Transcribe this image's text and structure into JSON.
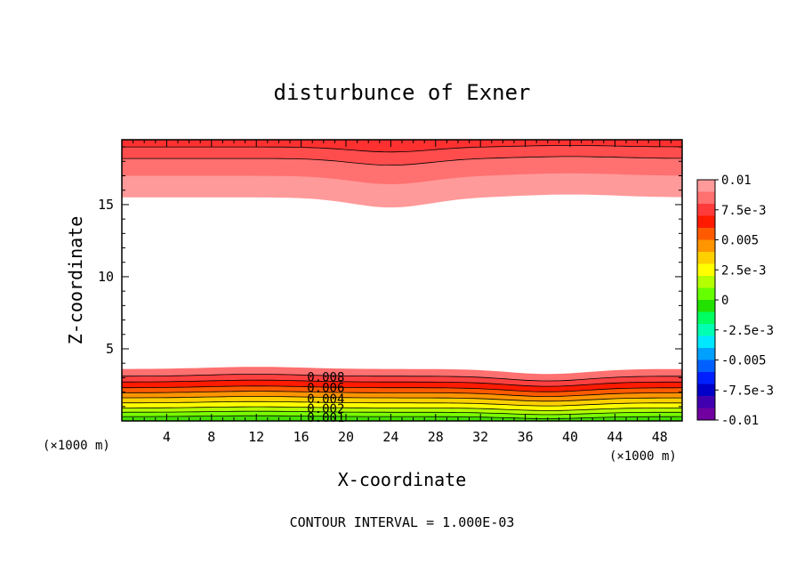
{
  "chart_data": {
    "type": "contour",
    "title": "disturbunce of Exner",
    "xlabel": "X-coordinate",
    "ylabel": "Z-coordinate",
    "x_unit_label": "(×1000 m)",
    "y_unit_label": "(×1000 m)",
    "xlim": [
      0,
      50
    ],
    "ylim": [
      0,
      19.5
    ],
    "x_ticks": [
      4,
      8,
      12,
      16,
      20,
      24,
      28,
      32,
      36,
      40,
      44,
      48
    ],
    "y_ticks": [
      5,
      10,
      15
    ],
    "contour_interval_text": "CONTOUR INTERVAL = 1.000E-03",
    "contour_labels": [
      "0.008",
      "0.006",
      "0.004",
      "0.002",
      "0.001"
    ],
    "colorbar": {
      "labels": [
        "0.01",
        "7.5e-3",
        "0.005",
        "2.5e-3",
        "0",
        "-2.5e-3",
        "-0.005",
        "-7.5e-3",
        "-0.01"
      ],
      "colors": [
        "#ff9a9a",
        "#ff7070",
        "#ff3a3a",
        "#ff1a00",
        "#ff5a00",
        "#ff9500",
        "#ffd000",
        "#ffff00",
        "#b4ff00",
        "#66ff00",
        "#22e000",
        "#00ff60",
        "#00ffb0",
        "#00e8ff",
        "#00a0ff",
        "#0060ff",
        "#0020ff",
        "#0000c8",
        "#4000b0",
        "#7000a0"
      ]
    },
    "bottom_layer_levels": [
      0.001,
      0.002,
      0.003,
      0.004,
      0.005,
      0.006,
      0.007,
      0.008,
      0.009,
      0.01
    ],
    "bottom_layer_colors": [
      "#44e000",
      "#7aff00",
      "#b4ff00",
      "#ffff00",
      "#ffd000",
      "#ff9500",
      "#ff5a00",
      "#ff1a00",
      "#ff4040",
      "#ff7070"
    ],
    "bottom_layer_tops_km": [
      0.3,
      0.6,
      0.9,
      1.25,
      1.6,
      1.95,
      2.3,
      2.7,
      3.1,
      3.6
    ],
    "top_layer_levels": [
      0.007,
      0.008,
      0.009,
      0.01
    ],
    "top_layer_colors": [
      "#ff9a9a",
      "#ff7070",
      "#ff4c4c",
      "#ff3030"
    ],
    "top_layer_bottoms_km": [
      15.5,
      17.0,
      18.2,
      19.0
    ],
    "top_boundary_dip": {
      "x_center": 24,
      "depth_km": 0.7
    },
    "bottom_boundary_dip": {
      "x_center": 38,
      "depth_km": 0.35
    }
  }
}
